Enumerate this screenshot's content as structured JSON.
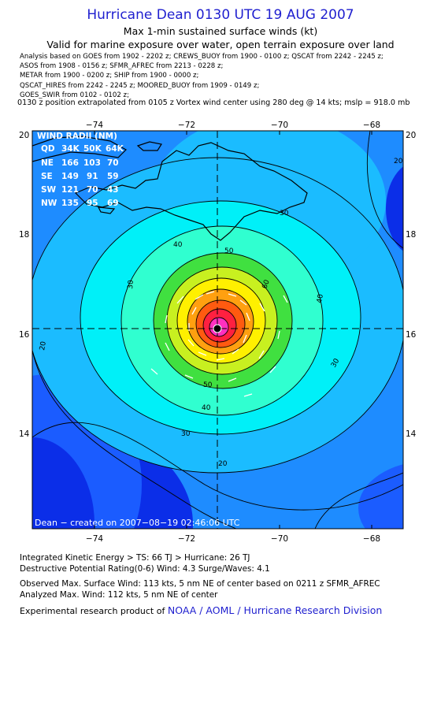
{
  "header": {
    "title": "Hurricane Dean 0130 UTC 19 AUG 2007",
    "subtitle1": "Max 1-min sustained surface winds (kt)",
    "subtitle2": "Valid for marine exposure over water, open terrain exposure over land"
  },
  "analysis_lines": [
    "Analysis based on  GOES from 1902 - 2202 z;  CREWS_BUOY from 1900 - 0100 z;  QSCAT from 2242 - 2245 z;",
    "ASOS from 1908 - 0156 z;  SFMR_AFREC from 2213 - 0228 z;",
    "METAR from 1900 - 0200 z;  SHIP from 1900 - 0000 z;",
    "QSCAT_HIRES from 2242 - 2245 z;  MOORED_BUOY from 1909 - 0149 z;",
    "GOES_SWIR from 0102 - 0102 z;"
  ],
  "position_line": "0130 z position extrapolated from 0105 z Vortex wind center using 280 deg @ 14 kts; mslp = 918.0 mb",
  "map": {
    "lon_ticks": [
      "−74",
      "−72",
      "−70",
      "−68"
    ],
    "lat_ticks": [
      "20",
      "18",
      "16",
      "14"
    ],
    "lon_range": [
      -75.3,
      -67.3
    ],
    "lat_range": [
      12.0,
      20.1
    ],
    "center": {
      "lon": -71.0,
      "lat": 16.1
    },
    "contour_labels": [
      "20",
      "20",
      "20",
      "30",
      "30",
      "30",
      "30",
      "40",
      "40",
      "40",
      "50",
      "50",
      "60"
    ],
    "credit": "Dean − created on 2007−08−19 02:46:06 UTC",
    "colors": {
      "deep_blue": "#0b2ee8",
      "blue": "#1b5cff",
      "light_blue": "#1e8cff",
      "sky": "#1bbcff",
      "cyan": "#00f0f8",
      "aqua": "#30ffd0",
      "green": "#40e040",
      "yellow_green": "#c8f020",
      "yellow": "#fff000",
      "orange": "#ffa010",
      "red_orange": "#ff5a10",
      "red": "#ff2040",
      "magenta": "#ff30c0"
    }
  },
  "wind_radii": {
    "title": "WIND RADII (NM)",
    "header": [
      "QD",
      "34K",
      "50K",
      "64K"
    ],
    "rows": [
      [
        "NE",
        "166",
        "103",
        "70"
      ],
      [
        "SE",
        "149",
        "91",
        "59"
      ],
      [
        "SW",
        "121",
        "70",
        "43"
      ],
      [
        "NW",
        "135",
        "95",
        "69"
      ]
    ]
  },
  "footer": {
    "ike": "Integrated Kinetic Energy > TS: 66 TJ   > Hurricane: 26 TJ",
    "dpr": "Destructive Potential Rating(0-6)  Wind: 4.3 Surge/Waves: 4.1",
    "observed": "Observed Max. Surface Wind: 113 kts, 5 nm NE of center based on 0211 z SFMR_AFREC",
    "analyzed": "Analyzed Max. Wind: 112 kts, 5 nm NE of center",
    "product_prefix": "Experimental research product of ",
    "product_org": "NOAA / AOML / Hurricane Research Division"
  }
}
